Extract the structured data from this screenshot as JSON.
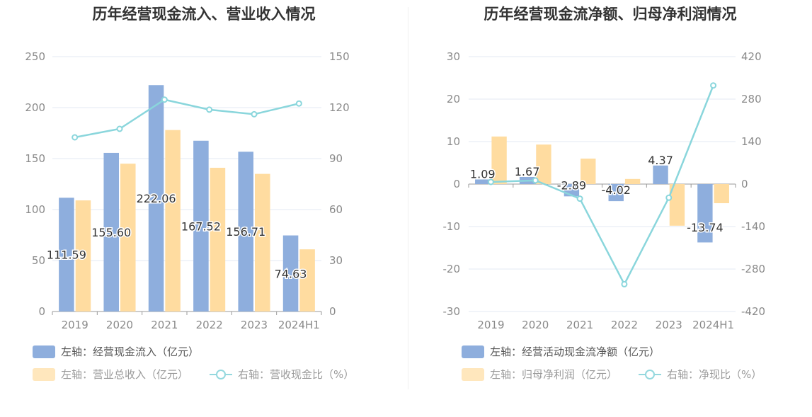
{
  "charts": [
    {
      "id": "left",
      "title": "历年经营现金流入、营业收入情况",
      "legend": {
        "bar1": "左轴：经营现金流入（亿元）",
        "bar2": "左轴：营业总收入（亿元）",
        "line": "右轴：营收现金比（%）"
      }
    },
    {
      "id": "right",
      "title": "历年经营现金流净额、归母净利润情况",
      "legend": {
        "bar1": "左轴：经营活动现金流净额（亿元）",
        "bar2": "左轴：归母净利润（亿元）",
        "line": "右轴：净现比（%）"
      }
    }
  ],
  "colors": {
    "bar1": "#8eaedd",
    "bar2": "#ffdca0",
    "line": "#8ad6dc",
    "grid": "#e3e8f3",
    "axis_text": "#8a8a8a",
    "label_text": "#333333"
  },
  "chart_data": [
    {
      "type": "bar+line",
      "title": "历年经营现金流入、营业收入情况",
      "categories": [
        "2019",
        "2020",
        "2021",
        "2022",
        "2023",
        "2024H1"
      ],
      "series": [
        {
          "name": "左轴：经营现金流入（亿元）",
          "axis": "left",
          "kind": "bar",
          "values": [
            111.59,
            155.6,
            222.06,
            167.52,
            156.71,
            74.63
          ],
          "labels": [
            "111.59",
            "155.60",
            "222.06",
            "167.52",
            "156.71",
            "74.63"
          ]
        },
        {
          "name": "左轴：营业总收入（亿元）",
          "axis": "left",
          "kind": "bar",
          "values": [
            109,
            145,
            178,
            141,
            135,
            61
          ]
        },
        {
          "name": "右轴：营收现金比（%）",
          "axis": "right",
          "kind": "line",
          "values": [
            102.5,
            107.5,
            124.7,
            118.8,
            116.1,
            122.4
          ]
        }
      ],
      "left_axis": {
        "min": 0,
        "max": 250,
        "ticks": [
          "0",
          "50",
          "100",
          "150",
          "200",
          "250"
        ]
      },
      "right_axis": {
        "min": 0,
        "max": 150,
        "ticks": [
          "0",
          "30",
          "60",
          "90",
          "120",
          "150"
        ]
      }
    },
    {
      "type": "bar+line",
      "title": "历年经营现金流净额、归母净利润情况",
      "categories": [
        "2019",
        "2020",
        "2021",
        "2022",
        "2023",
        "2024H1"
      ],
      "series": [
        {
          "name": "左轴：经营活动现金流净额（亿元）",
          "axis": "left",
          "kind": "bar",
          "values": [
            1.09,
            1.67,
            -2.89,
            -4.02,
            4.37,
            -13.74
          ],
          "labels": [
            "1.09",
            "1.67",
            "-2.89",
            "-4.02",
            "4.37",
            "-13.74"
          ]
        },
        {
          "name": "左轴：归母净利润（亿元）",
          "axis": "left",
          "kind": "bar",
          "values": [
            11.2,
            9.3,
            6.0,
            1.2,
            -9.8,
            -4.5
          ]
        },
        {
          "name": "右轴：净现比（%）",
          "axis": "right",
          "kind": "line",
          "values": [
            7,
            12,
            -48,
            -330,
            -45,
            325
          ]
        }
      ],
      "left_axis": {
        "min": -30,
        "max": 30,
        "ticks": [
          "-30",
          "-20",
          "-10",
          "0",
          "10",
          "20",
          "30"
        ]
      },
      "right_axis": {
        "min": -420,
        "max": 420,
        "ticks": [
          "-420",
          "-280",
          "-140",
          "0",
          "140",
          "280",
          "420"
        ]
      }
    }
  ]
}
